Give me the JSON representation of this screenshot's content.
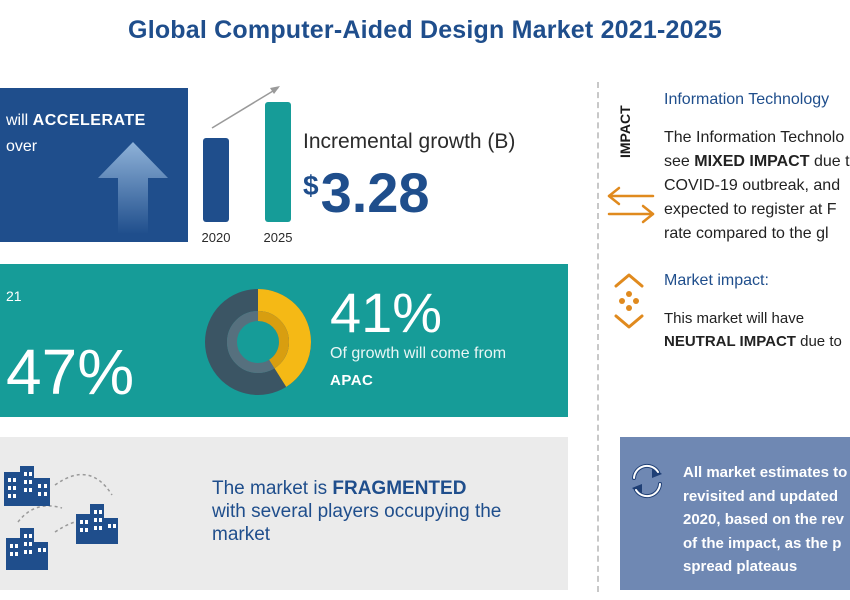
{
  "title": "Global Computer-Aided Design Market 2021-2025",
  "accelerate": {
    "line1_pre": "will ",
    "line1_bold": "ACCELERATE",
    "line2": "over"
  },
  "bar_chart": {
    "years": [
      "2020",
      "2025"
    ],
    "colors": [
      "#1f4e8c",
      "#169c98"
    ],
    "relative_values": [
      0.7,
      1.0
    ]
  },
  "incremental": {
    "label": "Incremental growth (B)",
    "currency": "$",
    "value": "3.28"
  },
  "yoy": {
    "year_fragment": "21",
    "percent": "47%"
  },
  "region": {
    "percent": "41%",
    "text": "Of growth will come from",
    "name": "APAC",
    "share": 0.41,
    "colors": {
      "highlight": "#f5b915",
      "highlight_dark": "#d89e10",
      "rest": "#3b5564",
      "rest_light": "#56707e"
    }
  },
  "fragmented": {
    "pre": "The market is ",
    "bold": "FRAGMENTED",
    "line2": "with several players occupying the",
    "line3": "market"
  },
  "impact": {
    "vertical_label": "IMPACT",
    "it_title": "Information Technology",
    "it_line1": "The Information Technolo",
    "it_line2_pre": "see ",
    "it_line2_bold": "MIXED IMPACT",
    "it_line2_post": " due t",
    "it_line3": "COVID-19 outbreak, and",
    "it_line4": "expected to register at F",
    "it_line5": "rate compared to the gl",
    "market_title": "Market impact:",
    "market_line1": "This market will have",
    "market_line2_bold": "NEUTRAL IMPACT",
    "market_line2_post": " due to",
    "accent_color": "#e08a1e"
  },
  "note": {
    "lines": [
      "All market estimates to",
      "revisited and updated",
      "2020, based on the rev",
      "of the impact, as the p",
      "spread plateaus"
    ]
  }
}
